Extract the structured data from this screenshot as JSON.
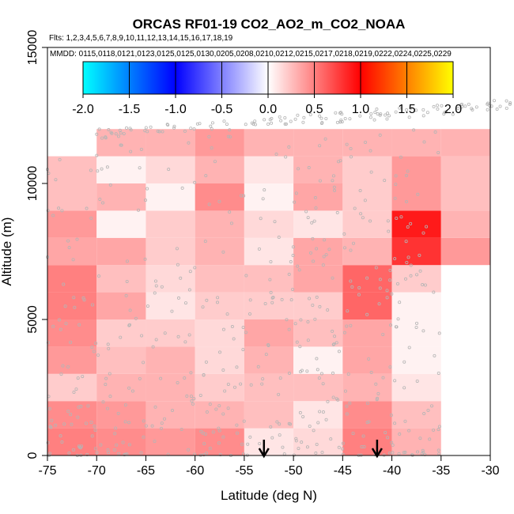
{
  "chart_data": {
    "type": "heatmap",
    "title": "ORCAS RF01-19 CO2_AO2_m_CO2_NOAA",
    "flights_text": "Flts: 1,2,3,4,5,6,7,8,9,10,11,12,13,14,15,16,17,18,19",
    "dates_text": "MMDD: 0115,0118,0121,0123,0125,0125,0130,0205,0208,0210,0212,0215,0217,0218,0219,0222,0224,0225,0229",
    "xlabel": "Latitude (deg N)",
    "ylabel": "Altitude (m)",
    "xlim": [
      -75,
      -30
    ],
    "ylim": [
      0,
      15000
    ],
    "x_ticks": [
      -75,
      -70,
      -65,
      -60,
      -55,
      -50,
      -45,
      -40,
      -35,
      -30
    ],
    "x_tick_labels": [
      "-75",
      "-70",
      "-65",
      "-60",
      "-55",
      "-50",
      "-45",
      "-40",
      "-35",
      "-30"
    ],
    "y_ticks": [
      0,
      5000,
      10000,
      15000
    ],
    "y_tick_labels": [
      "0",
      "5000",
      "10000",
      "15000"
    ],
    "colorbar": {
      "ticks": [
        -2.0,
        -1.5,
        -1.0,
        -0.5,
        0.0,
        0.5,
        1.0,
        1.5,
        2.0
      ],
      "tick_labels": [
        "-2.0",
        "-1.5",
        "-1.0",
        "-0.5",
        "0.0",
        "0.5",
        "1.0",
        "1.5",
        "2.0"
      ],
      "min": -2.0,
      "max": 2.0,
      "colors": [
        "#00ffff",
        "#0000ff",
        "#ffffff",
        "#ff0000",
        "#ffff00"
      ]
    },
    "lat_bin_edges": [
      -75,
      -70,
      -65,
      -60,
      -55,
      -50,
      -45,
      -40,
      -35,
      -30
    ],
    "alt_bin_edges": [
      0,
      1000,
      2000,
      3000,
      4000,
      5000,
      6000,
      7000,
      8000,
      9000,
      10000,
      11000,
      12000
    ],
    "cells": [
      [
        0.5,
        0.45,
        0.4,
        0.45,
        0.1,
        0.15,
        0.5,
        0.3,
        null
      ],
      [
        0.45,
        0.4,
        0.3,
        0.3,
        0.25,
        0.1,
        0.45,
        0.25,
        null
      ],
      [
        0.2,
        0.3,
        0.3,
        0.2,
        0.25,
        0.25,
        0.3,
        0.1,
        null
      ],
      [
        0.4,
        0.25,
        0.3,
        0.15,
        0.3,
        0.05,
        0.35,
        0.05,
        null
      ],
      [
        0.45,
        0.2,
        0.2,
        0.15,
        0.35,
        0.25,
        0.35,
        0.05,
        null
      ],
      [
        0.5,
        0.35,
        0.1,
        0.2,
        0.2,
        0.2,
        0.6,
        0.05,
        null
      ],
      [
        0.5,
        0.25,
        0.15,
        0.25,
        0.25,
        0.35,
        0.6,
        0.2,
        null
      ],
      [
        0.35,
        0.35,
        0.2,
        0.3,
        0.1,
        0.35,
        0.3,
        0.8,
        0.4
      ],
      [
        0.4,
        0.05,
        0.2,
        0.3,
        0.15,
        0.1,
        0.2,
        0.9,
        0.3
      ],
      [
        0.25,
        0.3,
        0.05,
        0.45,
        0.05,
        0.35,
        0.2,
        0.4,
        0.25
      ],
      [
        0.25,
        0.05,
        0.15,
        0.3,
        0.1,
        0.3,
        0.2,
        0.4,
        0.25
      ],
      [
        null,
        0.3,
        0.3,
        0.4,
        0.3,
        0.3,
        0.3,
        0.3,
        0.3
      ]
    ],
    "arrows_latitude": [
      -53,
      -41.5
    ]
  }
}
